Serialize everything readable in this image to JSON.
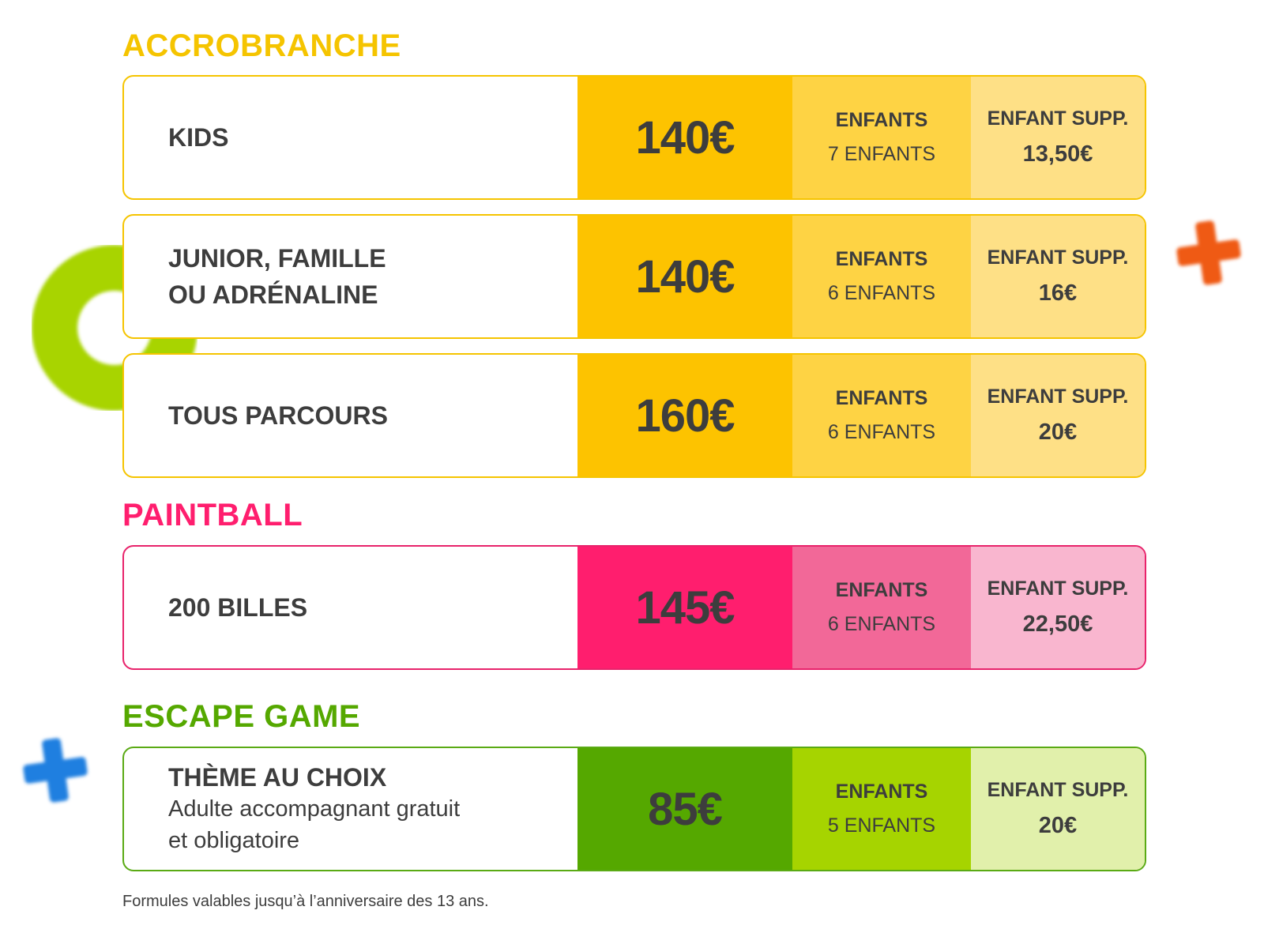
{
  "colors": {
    "accrobranche": "#f5c400",
    "paintball": "#ff1e6e",
    "escape_game": "#55a800",
    "text": "#3d3d3d"
  },
  "sections": {
    "accrobranche": {
      "title": "ACCROBRANCHE",
      "rows": [
        {
          "name": "KIDS",
          "price": "140€",
          "kids_head": "ENFANTS",
          "kids_value": "7 ENFANTS",
          "supp_head": "ENFANT SUPP.",
          "supp_value": "13,50€"
        },
        {
          "name": "JUNIOR, FAMILLE\nOU ADRÉNALINE",
          "price": "140€",
          "kids_head": "ENFANTS",
          "kids_value": "6 ENFANTS",
          "supp_head": "ENFANT SUPP.",
          "supp_value": "16€"
        },
        {
          "name": "TOUS PARCOURS",
          "price": "160€",
          "kids_head": "ENFANTS",
          "kids_value": "6 ENFANTS",
          "supp_head": "ENFANT SUPP.",
          "supp_value": "20€"
        }
      ]
    },
    "paintball": {
      "title": "PAINTBALL",
      "rows": [
        {
          "name": "200 BILLES",
          "price": "145€",
          "kids_head": "ENFANTS",
          "kids_value": "6 ENFANTS",
          "supp_head": "ENFANT SUPP.",
          "supp_value": "22,50€"
        }
      ]
    },
    "escape_game": {
      "title": "ESCAPE GAME",
      "rows": [
        {
          "name": "THÈME AU CHOIX",
          "note": "Adulte accompagnant gratuit\net obligatoire",
          "price": "85€",
          "kids_head": "ENFANTS",
          "kids_value": "5 ENFANTS",
          "supp_head": "ENFANT SUPP.",
          "supp_value": "20€"
        }
      ]
    }
  },
  "footnote": "Formules valables jusqu’à l’anniversaire des 13 ans.",
  "decorations": [
    "green-ring",
    "orange-plus-icon",
    "blue-plus-icon"
  ]
}
